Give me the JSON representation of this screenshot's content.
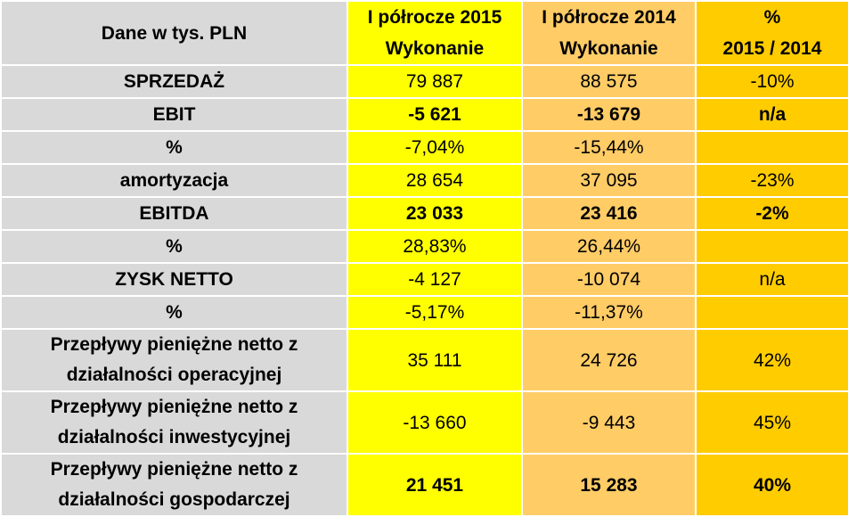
{
  "header": {
    "col0": "Dane w tys. PLN",
    "col1_line1": "I półrocze 2015",
    "col1_line2": "Wykonanie",
    "col2_line1": "I półrocze 2014",
    "col2_line2": "Wykonanie",
    "col3_line1": "%",
    "col3_line2": "2015 / 2014"
  },
  "rows": [
    {
      "label": "SPRZEDAŻ",
      "v2015": "79 887",
      "v2014": "88 575",
      "pct": "-10%"
    },
    {
      "label": "EBIT",
      "v2015": "-5 621",
      "v2014": "-13 679",
      "pct": "n/a"
    },
    {
      "label": "%",
      "v2015": "-7,04%",
      "v2014": "-15,44%",
      "pct": ""
    },
    {
      "label": "amortyzacja",
      "v2015": "28 654",
      "v2014": "37 095",
      "pct": "-23%"
    },
    {
      "label": "EBITDA",
      "v2015": "23 033",
      "v2014": "23 416",
      "pct": "-2%"
    },
    {
      "label": "%",
      "v2015": "28,83%",
      "v2014": "26,44%",
      "pct": ""
    },
    {
      "label": "ZYSK NETTO",
      "v2015": "-4 127",
      "v2014": "-10 074",
      "pct": "n/a"
    },
    {
      "label": "%",
      "v2015": "-5,17%",
      "v2014": "-11,37%",
      "pct": ""
    },
    {
      "label_line1": "Przepływy pieniężne  netto z",
      "label_line2": "działalności operacyjnej",
      "v2015": "35 111",
      "v2014": "24 726",
      "pct": "42%"
    },
    {
      "label_line1": "Przepływy pieniężne  netto z",
      "label_line2": "działalności inwestycyjnej",
      "v2015": "-13 660",
      "v2014": "-9 443",
      "pct": "45%"
    },
    {
      "label_line1": "Przepływy pieniężne  netto z",
      "label_line2": "działalności gospodarczej",
      "v2015": "21 451",
      "v2014": "15 283",
      "pct": "40%"
    }
  ],
  "colors": {
    "label_bg": "#d9d9d9",
    "col2015_bg": "#ffff00",
    "col2014_bg": "#ffcc66",
    "pct_bg": "#ffcc00"
  }
}
